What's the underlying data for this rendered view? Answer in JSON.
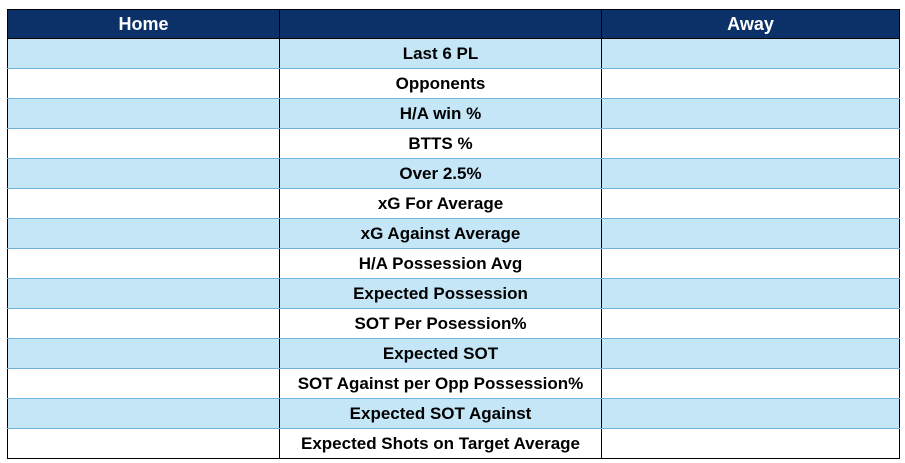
{
  "header": {
    "home_label": "Home",
    "middle_label": "",
    "away_label": "Away"
  },
  "rows": [
    {
      "home": "",
      "metric": "Last 6 PL",
      "away": ""
    },
    {
      "home": "",
      "metric": "Opponents",
      "away": ""
    },
    {
      "home": "",
      "metric": "H/A win %",
      "away": ""
    },
    {
      "home": "",
      "metric": "BTTS %",
      "away": ""
    },
    {
      "home": "",
      "metric": "Over 2.5%",
      "away": ""
    },
    {
      "home": "",
      "metric": "xG For Average",
      "away": ""
    },
    {
      "home": "",
      "metric": "xG Against Average",
      "away": ""
    },
    {
      "home": "",
      "metric": "H/A Possession Avg",
      "away": ""
    },
    {
      "home": "",
      "metric": "Expected Possession",
      "away": ""
    },
    {
      "home": "",
      "metric": "SOT Per Posession%",
      "away": ""
    },
    {
      "home": "",
      "metric": "Expected SOT",
      "away": ""
    },
    {
      "home": "",
      "metric": "SOT Against per Opp Possession%",
      "away": ""
    },
    {
      "home": "",
      "metric": "Expected SOT Against",
      "away": ""
    },
    {
      "home": "",
      "metric": "Expected Shots on Target Average",
      "away": ""
    }
  ],
  "colors": {
    "header_bg": "#0c3068",
    "header_text": "#ffffff",
    "band_bg": "#c5e6f7",
    "plain_bg": "#ffffff"
  }
}
